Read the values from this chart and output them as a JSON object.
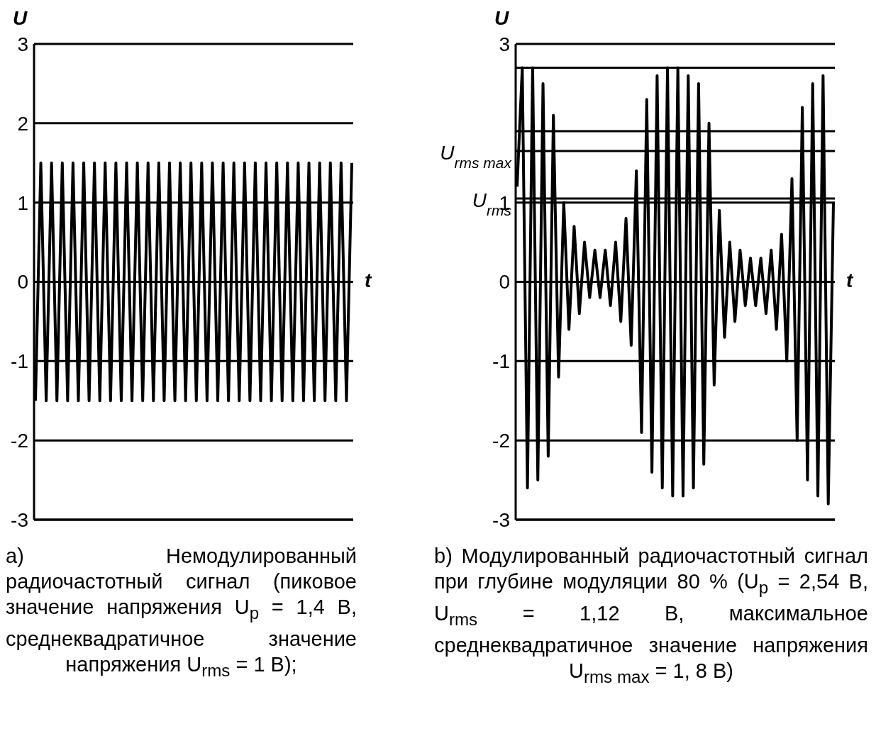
{
  "chart_data": [
    {
      "type": "line",
      "title": "а) Немодулированный радиочастотный сигнал (пиковое значение напряжения U$_{p}$ = 1,4 В, среднеквадратичное значение напряжения U$_{rms}$ = 1 В);",
      "ylabel": "U",
      "xlabel": "t",
      "categories": [
        null,
        null,
        null,
        null,
        null,
        null,
        null,
        null,
        null,
        null,
        null,
        null,
        null,
        null,
        null,
        null,
        null,
        null,
        null,
        null,
        null,
        null,
        null,
        null,
        null,
        null,
        null,
        null,
        null,
        null,
        null,
        null,
        null,
        null,
        null,
        null,
        null,
        null,
        null,
        null,
        null,
        null,
        null,
        null,
        null,
        null,
        null,
        null,
        null,
        null,
        null,
        null,
        null,
        null,
        null,
        null,
        null,
        null,
        null,
        null
      ],
      "series": [
        {
          "color": "#000000",
          "values": [
            -1.5,
            1.5,
            -1.5,
            1.5,
            -1.5,
            1.5,
            -1.5,
            1.5,
            -1.5,
            1.5,
            -1.5,
            1.5,
            -1.5,
            1.5,
            -1.5,
            1.5,
            -1.5,
            1.5,
            -1.5,
            1.5,
            -1.5,
            1.5,
            -1.5,
            1.5,
            -1.5,
            1.5,
            -1.5,
            1.5,
            -1.5,
            1.5,
            -1.5,
            1.5,
            -1.5,
            1.5,
            -1.5,
            1.5,
            -1.5,
            1.5,
            -1.5,
            1.5,
            -1.5,
            1.5,
            -1.5,
            1.5,
            -1.5,
            1.5,
            -1.5,
            1.5,
            -1.5,
            1.5,
            -1.5,
            1.5,
            -1.5,
            1.5,
            -1.5,
            1.5,
            -1.5,
            1.5,
            -1.5,
            1.5
          ]
        }
      ],
      "ylim": [
        -3,
        3
      ],
      "yticks": [
        -3,
        -2,
        -1,
        0,
        1,
        2,
        3
      ],
      "grid": "y",
      "tick_labels": "y"
    },
    {
      "type": "line",
      "title": "b) Модулированный радиочастотный сигнал при глубине модуляции 80 % (U$_{p}$ = 2,54 В, U$_{rms}$ = 1,12 В, максимальное среднеквадратичное значение напряжения U$_{rms max}$ = 1, 8 В)",
      "ylabel": "U",
      "xlabel": "t",
      "categories": [
        null,
        null,
        null,
        null,
        null,
        null,
        null,
        null,
        null,
        null,
        null,
        null,
        null,
        null,
        null,
        null,
        null,
        null,
        null,
        null,
        null,
        null,
        null,
        null,
        null,
        null,
        null,
        null,
        null,
        null,
        null,
        null,
        null,
        null,
        null,
        null,
        null,
        null,
        null,
        null,
        null,
        null,
        null,
        null,
        null,
        null,
        null,
        null,
        null,
        null,
        null,
        null,
        null,
        null,
        null,
        null,
        null,
        null,
        null,
        null,
        null,
        null
      ],
      "series": [
        {
          "color": "#000000",
          "values": [
            1.2,
            2.7,
            -2.6,
            2.7,
            -2.5,
            2.5,
            -2.2,
            2.1,
            -1.2,
            1.0,
            -0.6,
            0.7,
            -0.4,
            0.5,
            -0.2,
            0.4,
            -0.2,
            0.4,
            -0.3,
            0.5,
            -0.5,
            0.8,
            -0.8,
            1.4,
            -1.9,
            2.3,
            -2.4,
            2.6,
            -2.6,
            2.7,
            -2.7,
            2.7,
            -2.7,
            2.6,
            -2.6,
            2.5,
            -2.3,
            2.0,
            -1.3,
            0.9,
            -0.7,
            0.5,
            -0.5,
            0.4,
            -0.3,
            0.3,
            -0.3,
            0.3,
            -0.4,
            0.4,
            -0.6,
            0.6,
            -1.0,
            1.3,
            -2.0,
            2.2,
            -2.5,
            2.5,
            -2.7,
            2.6,
            -2.8,
            1.0
          ]
        }
      ],
      "ylim": [
        -3,
        3
      ],
      "yticks": [
        -3,
        -2,
        -1,
        0,
        1,
        3
      ],
      "grid": "y",
      "tick_labels": "y",
      "ref_lines": [
        {
          "axis": "y",
          "value": 2.7
        },
        {
          "axis": "y",
          "value": 1.9
        },
        {
          "axis": "y",
          "value": 1.65,
          "label": "U$_{rms max}$"
        },
        {
          "axis": "y",
          "value": 1.05,
          "label": "U$_{rms}$"
        }
      ]
    }
  ]
}
